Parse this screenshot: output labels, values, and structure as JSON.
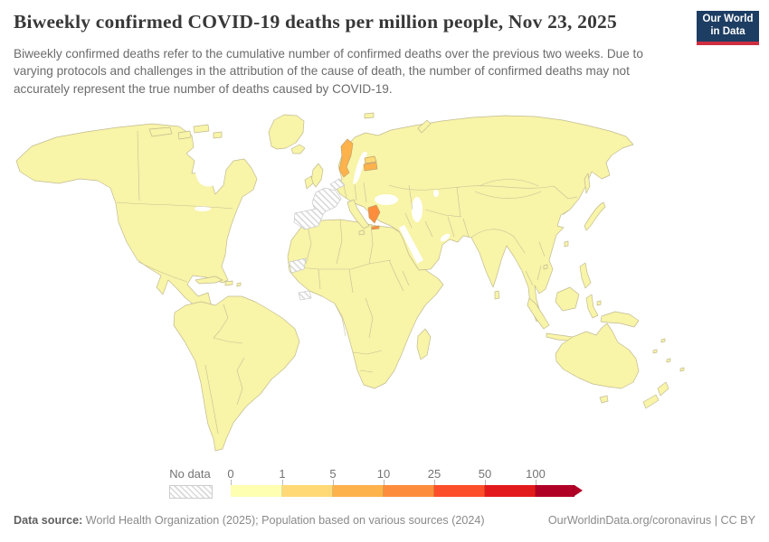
{
  "header": {
    "title": "Biweekly confirmed COVID-19 deaths per million people, Nov 23, 2025",
    "subtitle": "Biweekly confirmed deaths refer to the cumulative number of confirmed deaths over the previous two weeks. Due to varying protocols and challenges in the attribution of the cause of death, the number of confirmed deaths may not accurately represent the true number of deaths caused by COVID-19.",
    "logo": {
      "line1": "Our World",
      "line2": "in Data",
      "bg_color": "#1d3d63",
      "accent_color": "#cf2e41"
    }
  },
  "legend": {
    "no_data_label": "No data",
    "ticks": [
      "0",
      "1",
      "5",
      "10",
      "25",
      "50",
      "100"
    ],
    "bins": [
      {
        "label": "0",
        "color": "#ffffb2"
      },
      {
        "label": "1",
        "color": "#fed976"
      },
      {
        "label": "5",
        "color": "#feb24c"
      },
      {
        "label": "10",
        "color": "#fd8d3c"
      },
      {
        "label": "25",
        "color": "#fc4e2a"
      },
      {
        "label": "50",
        "color": "#e31a1c"
      },
      {
        "label": "100",
        "color": "#b10026"
      }
    ]
  },
  "map": {
    "default_fill": "#f8f4a8",
    "border_color": "#c2bb90",
    "countries": {
      "sweden": {
        "name": "Sweden",
        "bin": "5-10",
        "color": "#feb24c"
      },
      "estonia": {
        "name": "Estonia",
        "bin": "1-5",
        "color": "#fed976"
      },
      "latvia": {
        "name": "Latvia",
        "bin": "5-10",
        "color": "#feb24c"
      },
      "greece": {
        "name": "Greece",
        "bin": "10-25",
        "color": "#fd8d3c"
      },
      "france": {
        "name": "France",
        "bin": "No data"
      },
      "spain": {
        "name": "Spain",
        "bin": "No data"
      },
      "benelux": {
        "name": "Belgium/Netherlands",
        "bin": "No data"
      },
      "western_sahara": {
        "name": "Western Sahara",
        "bin": "No data"
      },
      "west_africa_coast": {
        "name": "West African coastal country",
        "bin": "No data"
      }
    }
  },
  "footer": {
    "source_label": "Data source:",
    "source_text": " World Health Organization (2025); Population based on various sources (2024)",
    "credit": "OurWorldinData.org/coronavirus | CC BY"
  },
  "chart_data": {
    "type": "choropleth_map",
    "title": "Biweekly confirmed COVID-19 deaths per million people",
    "date": "Nov 23, 2025",
    "metric": "Biweekly confirmed COVID-19 deaths per million people",
    "legend_bins": [
      {
        "threshold": 0,
        "color": "#ffffb2"
      },
      {
        "threshold": 1,
        "color": "#fed976"
      },
      {
        "threshold": 5,
        "color": "#feb24c"
      },
      {
        "threshold": 10,
        "color": "#fd8d3c"
      },
      {
        "threshold": 25,
        "color": "#fc4e2a"
      },
      {
        "threshold": 50,
        "color": "#e31a1c"
      },
      {
        "threshold": 100,
        "color": "#b10026"
      }
    ],
    "no_data_style": "white with diagonal gray hatching",
    "observations": [
      {
        "region": "Most countries worldwide",
        "bin": "0-1"
      },
      {
        "region": "Sweden",
        "bin": "5-10"
      },
      {
        "region": "Estonia",
        "bin": "1-5"
      },
      {
        "region": "Latvia",
        "bin": "5-10"
      },
      {
        "region": "Greece",
        "bin": "10-25"
      },
      {
        "region": "France",
        "bin": "No data"
      },
      {
        "region": "Spain",
        "bin": "No data"
      },
      {
        "region": "Belgium/Netherlands",
        "bin": "No data"
      },
      {
        "region": "Western Sahara",
        "bin": "No data"
      },
      {
        "region": "West African coastal country",
        "bin": "No data"
      }
    ]
  }
}
